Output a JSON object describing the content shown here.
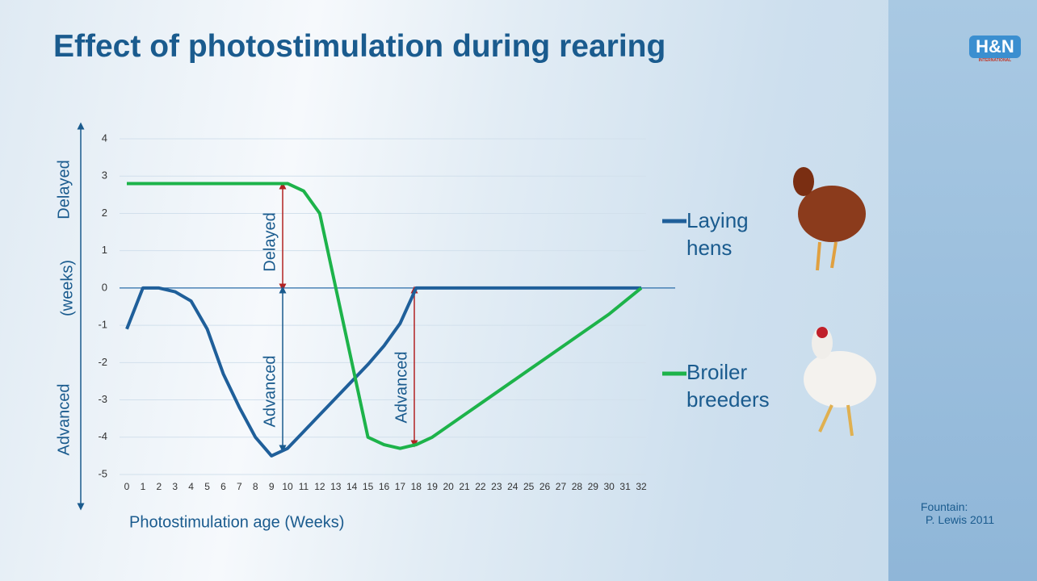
{
  "chart_data": {
    "type": "line",
    "title": "Effect of photostimulation during rearing",
    "x_label": "Photostimulation age (Weeks)",
    "y_labels": [
      "Delayed",
      "(weeks)",
      "Advanced"
    ],
    "x": [
      0,
      1,
      2,
      3,
      4,
      5,
      6,
      7,
      8,
      9,
      10,
      11,
      12,
      13,
      14,
      15,
      16,
      17,
      18,
      19,
      20,
      21,
      22,
      23,
      24,
      25,
      26,
      27,
      28,
      29,
      30,
      31,
      32
    ],
    "series": [
      {
        "name": "Laying hens",
        "color": "#1f5f9a",
        "values": [
          -1.1,
          0,
          0,
          -0.1,
          -0.35,
          -1.1,
          -2.3,
          -3.2,
          -4,
          -4.5,
          -4.3,
          -3.85,
          -3.4,
          -2.95,
          -2.5,
          -2.05,
          -1.55,
          -0.95,
          0,
          0,
          0,
          0,
          0,
          0,
          0,
          0,
          0,
          0,
          0,
          0,
          0,
          0,
          0
        ]
      },
      {
        "name": "Broiler breeders",
        "color": "#1db34a",
        "values": [
          2.8,
          2.8,
          2.8,
          2.8,
          2.8,
          2.8,
          2.8,
          2.8,
          2.8,
          2.8,
          2.8,
          2.6,
          2.0,
          0,
          -2,
          -4,
          -4.2,
          -4.3,
          -4.2,
          -4,
          -3.7,
          -3.4,
          -3.1,
          -2.8,
          -2.5,
          -2.2,
          -1.9,
          -1.6,
          -1.3,
          -1,
          -0.7,
          -0.35,
          0
        ]
      }
    ],
    "annotations": [
      "Delayed",
      "Advanced",
      "Advanced"
    ],
    "xlim": [
      0,
      32
    ],
    "xticks": [
      0,
      1,
      2,
      3,
      4,
      5,
      6,
      7,
      8,
      9,
      10,
      11,
      12,
      13,
      14,
      15,
      16,
      17,
      18,
      19,
      20,
      21,
      22,
      23,
      24,
      25,
      26,
      27,
      28,
      29,
      30,
      31,
      32
    ],
    "ylim": [
      -5,
      4
    ],
    "yticks": [
      -5,
      -4,
      -3,
      -2,
      -1,
      0,
      1,
      2,
      3,
      4
    ],
    "grid": true,
    "legend": "right"
  },
  "source": [
    "Fountain:",
    "P. Lewis 2011"
  ],
  "logo": {
    "mark": "H&N",
    "text": "INTERNATIONAL"
  }
}
